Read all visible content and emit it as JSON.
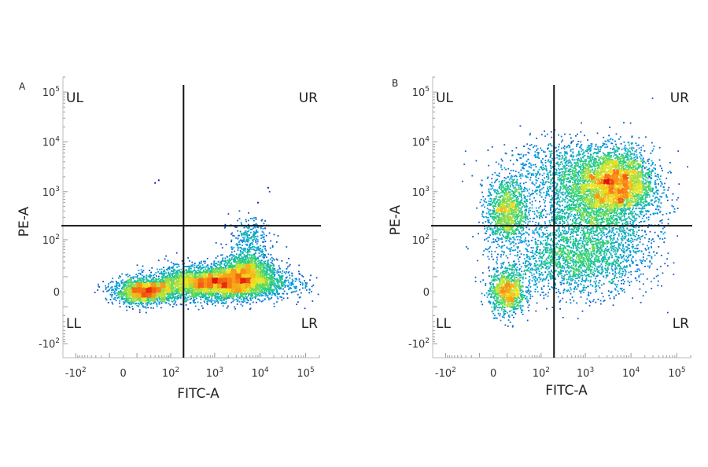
{
  "chart_data": [
    {
      "type": "scatter",
      "subtype": "flow-cytometry-density-plot",
      "panel_label": "A",
      "xlabel": "FITC-A",
      "ylabel": "PE-A",
      "x_scale": "biexponential",
      "y_scale": "biexponential",
      "xlim": [
        -200,
        200000
      ],
      "ylim": [
        -200,
        200000
      ],
      "x_ticks": [
        {
          "base": "-10",
          "exp": "2",
          "value": -100
        },
        {
          "base": "0",
          "exp": "",
          "value": 0
        },
        {
          "base": "10",
          "exp": "2",
          "value": 100
        },
        {
          "base": "10",
          "exp": "3",
          "value": 1000
        },
        {
          "base": "10",
          "exp": "4",
          "value": 10000
        },
        {
          "base": "10",
          "exp": "5",
          "value": 100000
        }
      ],
      "y_ticks": [
        {
          "base": "-10",
          "exp": "2",
          "value": -100
        },
        {
          "base": "0",
          "exp": "",
          "value": 0
        },
        {
          "base": "10",
          "exp": "2",
          "value": 100
        },
        {
          "base": "10",
          "exp": "3",
          "value": 1000
        },
        {
          "base": "10",
          "exp": "4",
          "value": 10000
        },
        {
          "base": "10",
          "exp": "5",
          "value": 100000
        }
      ],
      "gate": {
        "x": 200,
        "y": 200
      },
      "quadrants": {
        "ul": "UL",
        "ur": "UR",
        "ll": "LL",
        "lr": "LR"
      },
      "populations": [
        {
          "x": 20,
          "y": 0,
          "count": 1800,
          "sx": 0.06,
          "sy": 0.022
        },
        {
          "x": 2500,
          "y": 5,
          "count": 3200,
          "sx": 0.11,
          "sy": 0.03
        },
        {
          "x": 400,
          "y": 5,
          "count": 1700,
          "sx": 0.1,
          "sy": 0.028
        },
        {
          "x": 5000,
          "y": 20,
          "count": 900,
          "sx": 0.05,
          "sy": 0.028
        },
        {
          "x": 6000,
          "y": 100,
          "count": 300,
          "sx": 0.04,
          "sy": 0.04
        }
      ],
      "outliers": [
        [
          40,
          1500
        ],
        [
          50,
          1700
        ],
        [
          15000,
          1200
        ],
        [
          9000,
          600
        ]
      ]
    },
    {
      "type": "scatter",
      "subtype": "flow-cytometry-density-plot",
      "panel_label": "B",
      "xlabel": "FITC-A",
      "ylabel": "PE-A",
      "x_scale": "biexponential",
      "y_scale": "biexponential",
      "xlim": [
        -200,
        200000
      ],
      "ylim": [
        -200,
        200000
      ],
      "x_ticks": [
        {
          "base": "-10",
          "exp": "2",
          "value": -100
        },
        {
          "base": "0",
          "exp": "",
          "value": 0
        },
        {
          "base": "10",
          "exp": "2",
          "value": 100
        },
        {
          "base": "10",
          "exp": "3",
          "value": 1000
        },
        {
          "base": "10",
          "exp": "4",
          "value": 10000
        },
        {
          "base": "10",
          "exp": "5",
          "value": 100000
        }
      ],
      "y_ticks": [
        {
          "base": "-10",
          "exp": "2",
          "value": -100
        },
        {
          "base": "0",
          "exp": "",
          "value": 0
        },
        {
          "base": "10",
          "exp": "2",
          "value": 100
        },
        {
          "base": "10",
          "exp": "3",
          "value": 1000
        },
        {
          "base": "10",
          "exp": "4",
          "value": 10000
        },
        {
          "base": "10",
          "exp": "5",
          "value": 100000
        }
      ],
      "gate": {
        "x": 200,
        "y": 200
      },
      "quadrants": {
        "ul": "UL",
        "ur": "UR",
        "ll": "LL",
        "lr": "LR"
      },
      "populations": [
        {
          "x": 5000,
          "y": 1500,
          "count": 2600,
          "sx": 0.07,
          "sy": 0.06
        },
        {
          "x": 1500,
          "y": 500,
          "count": 2600,
          "sx": 0.12,
          "sy": 0.09
        },
        {
          "x": 10,
          "y": 400,
          "count": 1200,
          "sx": 0.04,
          "sy": 0.06
        },
        {
          "x": 10,
          "y": 0,
          "count": 1000,
          "sx": 0.035,
          "sy": 0.04
        },
        {
          "x": 600,
          "y": 30,
          "count": 1800,
          "sx": 0.14,
          "sy": 0.06
        },
        {
          "x": 400,
          "y": 3000,
          "count": 700,
          "sx": 0.13,
          "sy": 0.05
        }
      ],
      "outliers": [
        [
          20000,
          3000
        ],
        [
          25000,
          2000
        ],
        [
          500,
          10000
        ]
      ]
    }
  ]
}
